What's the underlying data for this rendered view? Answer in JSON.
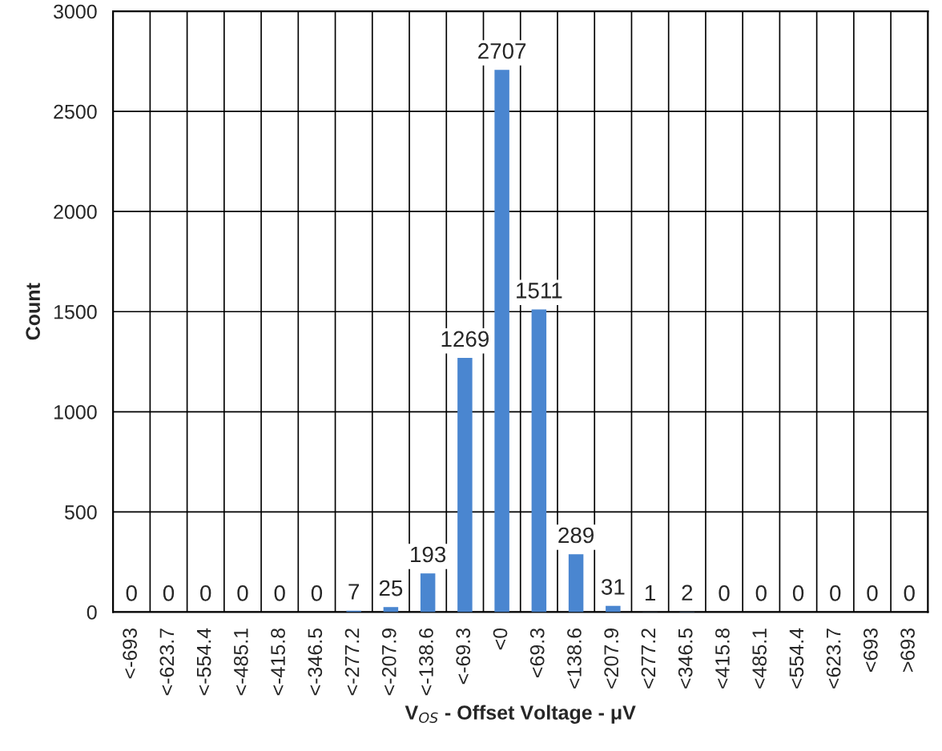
{
  "chart_data": {
    "type": "bar",
    "xlabel": "V$_{OS}$ - Offset Voltage - μV",
    "ylabel": "Count",
    "categories": [
      "<-693",
      "<-623.7",
      "<-554.4",
      "<-485.1",
      "<-415.8",
      "<-346.5",
      "<-277.2",
      "<-207.9",
      "<-138.6",
      "<-69.3",
      "<0",
      "<69.3",
      "<138.6",
      "<207.9",
      "<277.2",
      "<346.5",
      "<415.8",
      "<485.1",
      "<554.4",
      "<623.7",
      "<693",
      ">693"
    ],
    "values": [
      0,
      0,
      0,
      0,
      0,
      0,
      7,
      25,
      193,
      1269,
      2707,
      1511,
      289,
      31,
      1,
      2,
      0,
      0,
      0,
      0,
      0,
      0
    ],
    "color": "#4a86d0",
    "ylim": [
      0,
      3000
    ],
    "yticks": [
      0,
      500,
      1000,
      1500,
      2000,
      2500,
      3000
    ],
    "grid": true,
    "data_labels": true
  }
}
